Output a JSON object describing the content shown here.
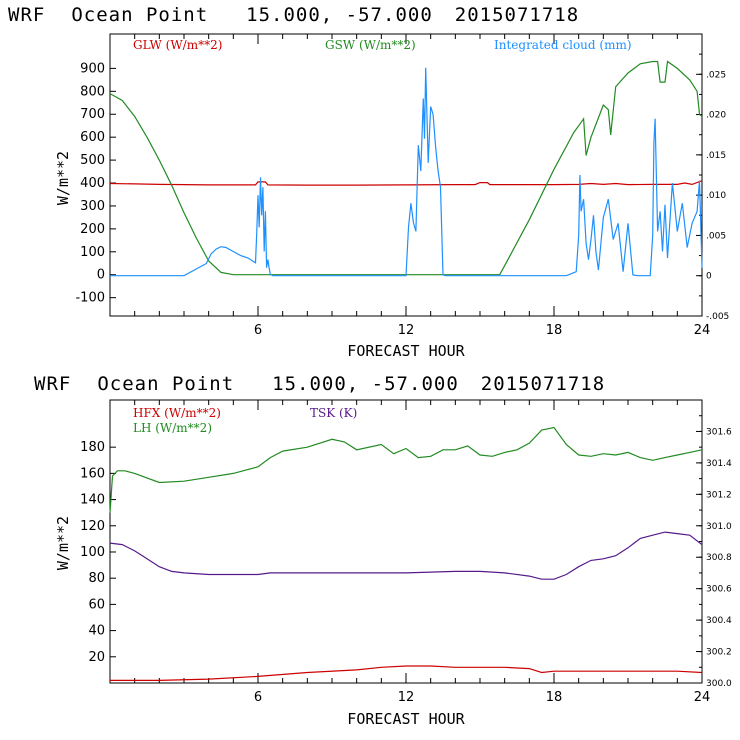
{
  "chart_data": [
    {
      "type": "line",
      "header": {
        "model": "WRF",
        "location": "Ocean Point",
        "coords": "15.000, -57.000",
        "init_time": "2015071718"
      },
      "xlabel": "FORECAST HOUR",
      "ylabel": "W/m**2",
      "xlim": [
        0,
        24
      ],
      "ylim": [
        -180,
        1050
      ],
      "xticks": [
        "6",
        "12",
        "18",
        "24"
      ],
      "yticks": [
        "-100",
        "0",
        "100",
        "200",
        "300",
        "400",
        "500",
        "600",
        "700",
        "800",
        "900"
      ],
      "right_axis": {
        "ylim": [
          -0.005,
          0.03
        ],
        "ticks": [
          "-.005",
          "0",
          ".005",
          ".010",
          ".015",
          ".020",
          ".025"
        ]
      },
      "legend": [
        {
          "label": "GLW (W/m**2)",
          "color": "#cc0000"
        },
        {
          "label": "GSW (W/m**2)",
          "color": "#228b22"
        },
        {
          "label": "Integrated cloud (mm)",
          "color": "#1e90ff"
        }
      ],
      "series": [
        {
          "name": "GLW (W/m**2)",
          "color": "#cc0000",
          "x": [
            0,
            1,
            2,
            3,
            4,
            5,
            5.9,
            6.0,
            6.3,
            6.4,
            8,
            10,
            12,
            14,
            14.8,
            15.0,
            15.3,
            15.4,
            17,
            18,
            19,
            19.5,
            20,
            20.5,
            21,
            22,
            23,
            23.3,
            23.6,
            24
          ],
          "y": [
            398,
            396,
            394,
            393,
            392,
            392,
            392,
            405,
            405,
            392,
            391,
            391,
            392,
            393,
            393,
            402,
            402,
            393,
            393,
            393,
            394,
            398,
            394,
            398,
            393,
            394,
            394,
            400,
            394,
            410
          ]
        },
        {
          "name": "GSW (W/m**2)",
          "color": "#228b22",
          "x": [
            0,
            0.5,
            1,
            1.5,
            2,
            2.5,
            3,
            3.5,
            4,
            4.5,
            5,
            6,
            8,
            10,
            12,
            14,
            15.8,
            16,
            17,
            18,
            18.6,
            18.8,
            19,
            19.2,
            19.3,
            19.5,
            20,
            20.2,
            20.3,
            20.5,
            21,
            21.5,
            22,
            22.2,
            22.3,
            22.5,
            22.6,
            23,
            23.5,
            23.8,
            23.9,
            24
          ],
          "y": [
            790,
            760,
            690,
            600,
            500,
            390,
            270,
            160,
            60,
            10,
            0,
            0,
            0,
            0,
            0,
            0,
            0,
            40,
            240,
            460,
            580,
            620,
            650,
            680,
            520,
            600,
            740,
            720,
            610,
            820,
            880,
            920,
            930,
            930,
            840,
            840,
            930,
            900,
            850,
            800,
            700,
            690
          ]
        },
        {
          "name": "Integrated cloud (mm)",
          "axis": "right",
          "color": "#1e90ff",
          "x": [
            0,
            3,
            3.9,
            4.1,
            4.3,
            4.5,
            4.7,
            5.0,
            5.3,
            5.6,
            5.9,
            5.95,
            6.0,
            6.05,
            6.1,
            6.15,
            6.2,
            6.25,
            6.3,
            6.35,
            6.4,
            6.45,
            6.5,
            6.6,
            12.0,
            12.1,
            12.2,
            12.3,
            12.4,
            12.5,
            12.6,
            12.7,
            12.75,
            12.8,
            12.9,
            13.0,
            13.1,
            13.2,
            13.3,
            13.4,
            13.5,
            13.6,
            13.8,
            14.0,
            14.2,
            14.4,
            14.6,
            14.8,
            15.0,
            15.2,
            18.5,
            18.9,
            19.0,
            19.05,
            19.1,
            19.2,
            19.3,
            19.4,
            19.5,
            19.6,
            19.7,
            19.8,
            20.0,
            20.2,
            20.4,
            20.6,
            20.8,
            21.0,
            21.2,
            21.4,
            21.6,
            21.8,
            21.9,
            22.0,
            22.05,
            22.1,
            22.2,
            22.3,
            22.4,
            22.5,
            22.6,
            22.8,
            23.0,
            23.2,
            23.4,
            23.6,
            23.8,
            23.9,
            24.0
          ],
          "y": [
            0,
            0,
            0.0015,
            0.0027,
            0.0033,
            0.0036,
            0.0035,
            0.003,
            0.0025,
            0.0022,
            0.0016,
            0.0055,
            0.01,
            0.006,
            0.0122,
            0.0075,
            0.011,
            0.003,
            0.008,
            0.001,
            0.002,
            0.001,
            0.0002,
            0,
            0,
            0.006,
            0.009,
            0.0066,
            0.0055,
            0.0162,
            0.013,
            0.022,
            0.017,
            0.0258,
            0.014,
            0.021,
            0.02,
            0.016,
            0.013,
            0.011,
            0.0001,
            0,
            0,
            0,
            0,
            0,
            0,
            0,
            0,
            0,
            0,
            0.0005,
            0.005,
            0.0125,
            0.008,
            0.0095,
            0.004,
            0.002,
            0.0045,
            0.0075,
            0.003,
            0.0007,
            0.0072,
            0.0095,
            0.0045,
            0.0065,
            0.0005,
            0.0065,
            0.0001,
            0,
            0,
            0,
            0,
            0.005,
            0.0165,
            0.0195,
            0.0055,
            0.008,
            0.003,
            0.0088,
            0.0022,
            0.0115,
            0.0055,
            0.009,
            0.0035,
            0.0065,
            0.008,
            0.0118,
            0.001
          ]
        }
      ]
    },
    {
      "type": "line",
      "header": {
        "model": "WRF",
        "location": "Ocean Point",
        "coords": "15.000, -57.000",
        "init_time": "2015071718"
      },
      "xlabel": "FORECAST HOUR",
      "ylabel": "W/m**2",
      "xlim": [
        0,
        24
      ],
      "ylim": [
        0,
        216
      ],
      "xticks": [
        "6",
        "12",
        "18",
        "24"
      ],
      "yticks": [
        "20",
        "40",
        "60",
        "80",
        "100",
        "120",
        "140",
        "160",
        "180"
      ],
      "right_axis": {
        "ylim": [
          300.0,
          301.8
        ],
        "ticks": [
          "300.0",
          "300.2",
          "300.4",
          "300.6",
          "300.8",
          "301.0",
          "301.2",
          "301.4",
          "301.6"
        ]
      },
      "legend": [
        {
          "label": "HFX (W/m**2)",
          "color": "#cc0000"
        },
        {
          "label": "LH  (W/m**2)",
          "color": "#228b22"
        },
        {
          "label": "TSK (K)",
          "color": "#551a8b"
        }
      ],
      "series": [
        {
          "name": "HFX (W/m**2)",
          "color": "#cc0000",
          "x": [
            0,
            2,
            4,
            6,
            8,
            10,
            11,
            12,
            13,
            14,
            15,
            16,
            17,
            17.5,
            18,
            19,
            20,
            21,
            22,
            23,
            24
          ],
          "y": [
            2,
            2,
            3,
            5,
            8,
            10,
            12,
            13,
            13,
            12,
            12,
            12,
            11,
            8,
            9,
            9,
            9,
            9,
            9,
            9,
            8
          ]
        },
        {
          "name": "LH  (W/m**2)",
          "color": "#228b22",
          "x": [
            0,
            0.1,
            0.3,
            0.6,
            1,
            2,
            3,
            4,
            5,
            6,
            6.5,
            7,
            8,
            9,
            9.5,
            10,
            11,
            11.5,
            12,
            12.5,
            13,
            13.5,
            14,
            14.5,
            15,
            15.5,
            16,
            16.5,
            17,
            17.5,
            18,
            18.5,
            19,
            19.5,
            20,
            20.5,
            21,
            21.5,
            22,
            22.5,
            23,
            23.5,
            24
          ],
          "y": [
            130,
            158,
            162,
            162,
            160,
            153,
            154,
            157,
            160,
            165,
            172,
            177,
            180,
            186,
            184,
            178,
            182,
            175,
            179,
            172,
            173,
            178,
            178,
            181,
            174,
            173,
            176,
            178,
            183,
            193,
            195,
            182,
            174,
            173,
            175,
            174,
            176,
            172,
            170,
            172,
            174,
            176,
            178
          ]
        },
        {
          "name": "TSK (K)",
          "axis": "right",
          "color": "#551a8b",
          "x": [
            0,
            0.5,
            1,
            1.5,
            2,
            2.5,
            3,
            4,
            5,
            6,
            6.5,
            8,
            10,
            12,
            14,
            15,
            16,
            17,
            17.5,
            18,
            18.5,
            19,
            19.5,
            20,
            20.5,
            21,
            21.5,
            22,
            22.5,
            23,
            23.5,
            24
          ],
          "y": [
            300.89,
            300.88,
            300.84,
            300.79,
            300.74,
            300.71,
            300.7,
            300.69,
            300.69,
            300.69,
            300.7,
            300.7,
            300.7,
            300.7,
            300.71,
            300.71,
            300.7,
            300.68,
            300.66,
            300.66,
            300.69,
            300.74,
            300.78,
            300.79,
            300.81,
            300.86,
            300.92,
            300.94,
            300.96,
            300.95,
            300.94,
            300.88
          ]
        }
      ]
    }
  ]
}
